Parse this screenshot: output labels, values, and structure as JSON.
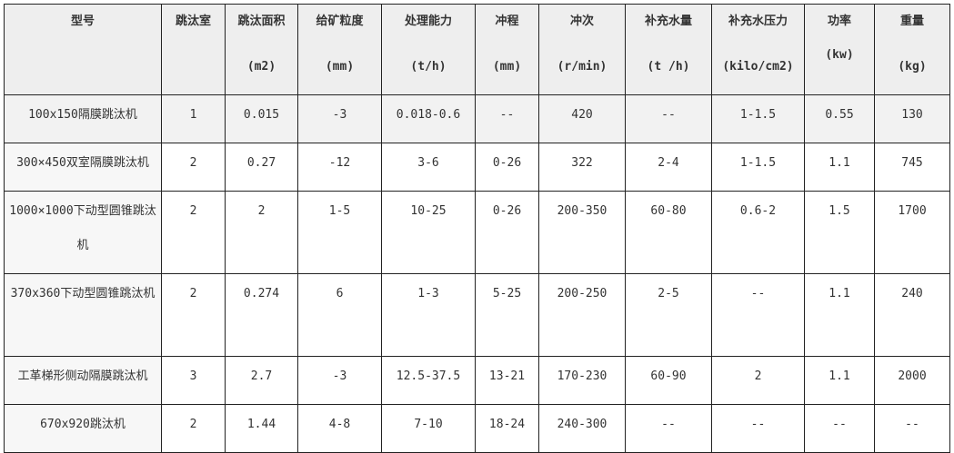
{
  "headers": [
    {
      "title": "型号",
      "unit": ""
    },
    {
      "title": "跳汰室",
      "unit": ""
    },
    {
      "title": "跳汰面积",
      "unit": "(m2)"
    },
    {
      "title": "给矿粒度",
      "unit": "(mm)"
    },
    {
      "title": "处理能力",
      "unit": "(t/h)"
    },
    {
      "title": "冲程",
      "unit": "(mm)"
    },
    {
      "title": "冲次",
      "unit": "(r/min)"
    },
    {
      "title": "补充水量",
      "unit": "(t /h)"
    },
    {
      "title": "补充水压力",
      "unit": "(kilo/cm2)"
    },
    {
      "title": "功率",
      "unit": "(kw)"
    },
    {
      "title": "重量",
      "unit": "(kg)"
    }
  ],
  "rows": [
    [
      "100x150隔膜跳汰机",
      "1",
      "0.015",
      "-3",
      "0.018-0.6",
      "--",
      "420",
      "--",
      "1-1.5",
      "0.55",
      "130"
    ],
    [
      "300×450双室隔膜跳汰机",
      "2",
      "0.27",
      "-12",
      "3-6",
      "0-26",
      "322",
      "2-4",
      "1-1.5",
      "1.1",
      "745"
    ],
    [
      "1000×1000下动型圆锥跳汰机",
      "2",
      "2",
      "1-5",
      "10-25",
      "0-26",
      "200-350",
      "60-80",
      "0.6-2",
      "1.5",
      "1700"
    ],
    [
      "370x360下动型圆锥跳汰机",
      "2",
      "0.274",
      "6",
      "1-3",
      "5-25",
      "200-250",
      "2-5",
      "--",
      "1.1",
      "240"
    ],
    [
      "工革梯形侧动隔膜跳汰机",
      "3",
      "2.7",
      "-3",
      "12.5-37.5",
      "13-21",
      "170-230",
      "60-90",
      "2",
      "1.1",
      "2000"
    ],
    [
      "670x920跳汰机",
      "2",
      "1.44",
      "4-8",
      "7-10",
      "18-24",
      "240-300",
      "--",
      "--",
      "--",
      "--"
    ]
  ]
}
